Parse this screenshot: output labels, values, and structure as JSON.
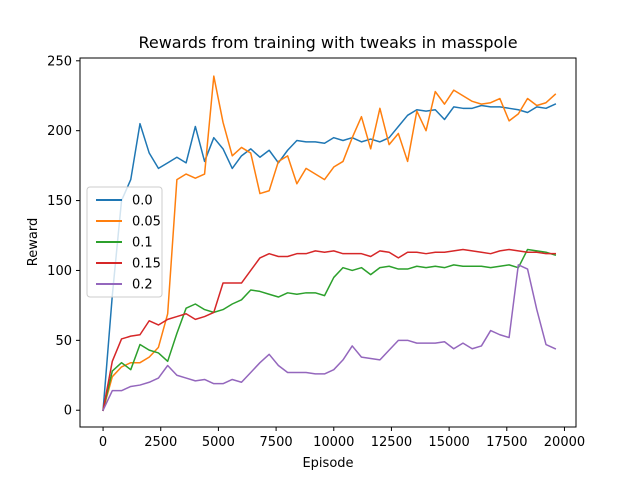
{
  "chart_data": {
    "type": "line",
    "title": "Rewards from training with tweaks in masspole",
    "xlabel": "Episode",
    "ylabel": "Reward",
    "xlim": [
      -1000,
      20500
    ],
    "ylim": [
      -12,
      252
    ],
    "xticks": [
      0,
      2500,
      5000,
      7500,
      10000,
      12500,
      15000,
      17500,
      20000
    ],
    "yticks": [
      0,
      50,
      100,
      150,
      200,
      250
    ],
    "legend_position": "center-left",
    "grid": false,
    "x": [
      0,
      400,
      800,
      1200,
      1600,
      2000,
      2400,
      2800,
      3200,
      3600,
      4000,
      4400,
      4800,
      5200,
      5600,
      6000,
      6400,
      6800,
      7200,
      7600,
      8000,
      8400,
      8800,
      9200,
      9600,
      10000,
      10400,
      10800,
      11200,
      11600,
      12000,
      12400,
      12800,
      13200,
      13600,
      14000,
      14400,
      14800,
      15200,
      15600,
      16000,
      16400,
      16800,
      17200,
      17600,
      18000,
      18400,
      18800,
      19200,
      19600
    ],
    "series": [
      {
        "name": "0.0",
        "color": "#1f77b4",
        "values": [
          0,
          82,
          150,
          165,
          205,
          184,
          173,
          177,
          181,
          177,
          203,
          178,
          195,
          187,
          173,
          182,
          187,
          181,
          186,
          177,
          186,
          193,
          192,
          192,
          191,
          195,
          193,
          195,
          192,
          194,
          192,
          195,
          203,
          211,
          215,
          214,
          215,
          208,
          217,
          216,
          216,
          218,
          217,
          217,
          216,
          215,
          213,
          217,
          216,
          219
        ]
      },
      {
        "name": "0.05",
        "color": "#ff7f0e",
        "values": [
          0,
          24,
          31,
          34,
          34,
          38,
          45,
          69,
          165,
          169,
          166,
          169,
          239,
          206,
          182,
          188,
          184,
          155,
          157,
          178,
          182,
          162,
          173,
          169,
          165,
          174,
          178,
          195,
          210,
          187,
          216,
          190,
          198,
          178,
          214,
          200,
          228,
          219,
          229,
          225,
          221,
          219,
          220,
          223,
          207,
          212,
          223,
          218,
          220,
          226
        ]
      },
      {
        "name": "0.1",
        "color": "#2ca02c",
        "values": [
          0,
          28,
          34,
          29,
          47,
          43,
          41,
          35,
          55,
          73,
          76,
          72,
          70,
          72,
          76,
          79,
          86,
          85,
          83,
          81,
          84,
          83,
          84,
          84,
          82,
          95,
          102,
          100,
          102,
          97,
          102,
          103,
          101,
          101,
          103,
          102,
          103,
          102,
          104,
          103,
          103,
          103,
          102,
          103,
          104,
          102,
          115,
          114,
          113,
          111
        ]
      },
      {
        "name": "0.15",
        "color": "#d62728",
        "values": [
          0,
          35,
          51,
          53,
          54,
          64,
          61,
          65,
          67,
          69,
          65,
          67,
          70,
          91,
          91,
          91,
          100,
          109,
          112,
          110,
          110,
          112,
          112,
          114,
          113,
          114,
          112,
          112,
          112,
          110,
          114,
          113,
          109,
          113,
          113,
          112,
          113,
          113,
          114,
          115,
          114,
          113,
          112,
          114,
          115,
          114,
          113,
          113,
          112,
          112
        ]
      },
      {
        "name": "0.2",
        "color": "#9467bd",
        "values": [
          0,
          14,
          14,
          17,
          18,
          20,
          23,
          32,
          25,
          23,
          21,
          22,
          19,
          19,
          22,
          20,
          27,
          34,
          40,
          32,
          27,
          27,
          27,
          26,
          26,
          29,
          36,
          46,
          38,
          37,
          36,
          43,
          50,
          50,
          48,
          48,
          48,
          49,
          44,
          48,
          44,
          46,
          57,
          54,
          52,
          104,
          101,
          72,
          47,
          44
        ]
      }
    ]
  }
}
